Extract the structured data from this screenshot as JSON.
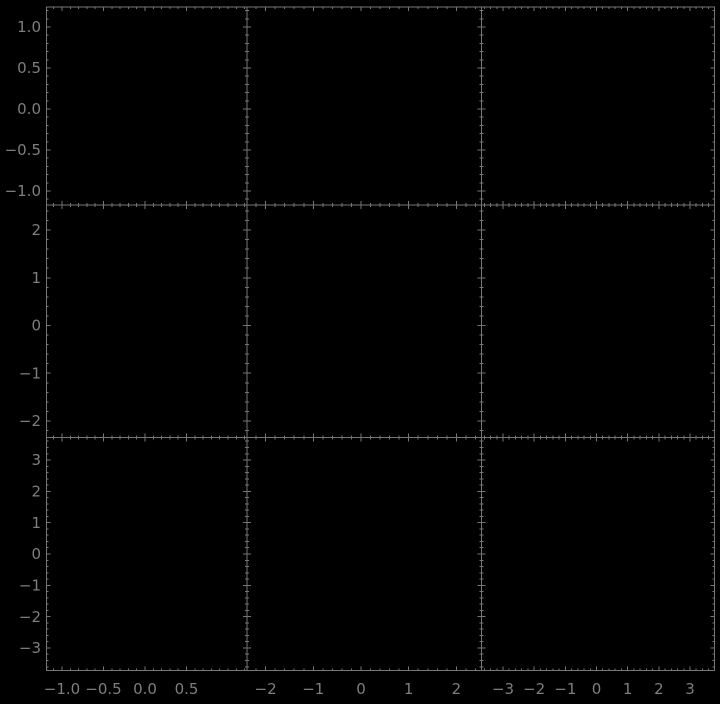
{
  "figure": {
    "background": "#000000",
    "axis_color": "#767676",
    "tick_label_color": "#7e7e7e",
    "grid_rows": 3,
    "grid_cols": 3,
    "title": ""
  },
  "chart_data": [
    {
      "type": "scatter",
      "row": 0,
      "col": 0,
      "series": [],
      "x_major_ticks": [
        -1.0,
        -0.5,
        0.0,
        0.5
      ],
      "x_tick_labels": [
        "−1.0",
        "−0.5",
        "0.0",
        "0.5"
      ],
      "y_major_ticks": [
        1.0,
        0.5,
        0.0,
        -0.5,
        -1.0
      ],
      "y_tick_labels": [
        "1.0",
        "0.5",
        "0.0",
        "−0.5",
        "−1.0"
      ],
      "xlim": [
        -1.187,
        1.229
      ],
      "ylim": [
        -1.171,
        1.244
      ],
      "x_minor_step": 0.1,
      "y_minor_step": 0.1,
      "show_x_tick_labels": false,
      "show_y_tick_labels": true
    },
    {
      "type": "scatter",
      "row": 0,
      "col": 1,
      "series": [],
      "x_major_ticks": [
        -2,
        -1,
        0,
        1,
        2
      ],
      "x_tick_labels": [
        "−2",
        "−1",
        "0",
        "1",
        "2"
      ],
      "y_major_ticks": [
        1.0,
        0.5,
        0.0,
        -0.5,
        -1.0
      ],
      "y_tick_labels": [
        "1.0",
        "0.5",
        "0.0",
        "−0.5",
        "−1.0"
      ],
      "xlim": [
        -2.39,
        2.526
      ],
      "ylim": [
        -1.171,
        1.244
      ],
      "x_minor_step": 0.2,
      "y_minor_step": 0.1,
      "show_x_tick_labels": false,
      "show_y_tick_labels": false
    },
    {
      "type": "scatter",
      "row": 0,
      "col": 2,
      "series": [],
      "x_major_ticks": [
        -3,
        -2,
        -1,
        0,
        1,
        2,
        3
      ],
      "x_tick_labels": [
        "−3",
        "−2",
        "−1",
        "0",
        "1",
        "2",
        "3"
      ],
      "y_major_ticks": [
        1.0,
        0.5,
        0.0,
        -0.5,
        -1.0
      ],
      "y_tick_labels": [
        "1.0",
        "0.5",
        "0.0",
        "−0.5",
        "−1.0"
      ],
      "xlim": [
        -3.69,
        3.786
      ],
      "ylim": [
        -1.171,
        1.244
      ],
      "x_minor_step": 0.2,
      "y_minor_step": 0.1,
      "show_x_tick_labels": false,
      "show_y_tick_labels": false
    },
    {
      "type": "scatter",
      "row": 1,
      "col": 0,
      "series": [],
      "x_major_ticks": [
        -1.0,
        -0.5,
        0.0,
        0.5
      ],
      "x_tick_labels": [
        "−1.0",
        "−0.5",
        "0.0",
        "0.5"
      ],
      "y_major_ticks": [
        2,
        1,
        0,
        -1,
        -2
      ],
      "y_tick_labels": [
        "2",
        "1",
        "0",
        "−1",
        "−2"
      ],
      "xlim": [
        -1.187,
        1.229
      ],
      "ylim": [
        -2.346,
        2.524
      ],
      "x_minor_step": 0.1,
      "y_minor_step": 0.2,
      "show_x_tick_labels": false,
      "show_y_tick_labels": true
    },
    {
      "type": "scatter",
      "row": 1,
      "col": 1,
      "series": [],
      "x_major_ticks": [
        -2,
        -1,
        0,
        1,
        2
      ],
      "x_tick_labels": [
        "−2",
        "−1",
        "0",
        "1",
        "2"
      ],
      "y_major_ticks": [
        2,
        1,
        0,
        -1,
        -2
      ],
      "y_tick_labels": [
        "2",
        "1",
        "0",
        "−1",
        "−2"
      ],
      "xlim": [
        -2.39,
        2.526
      ],
      "ylim": [
        -2.346,
        2.524
      ],
      "x_minor_step": 0.2,
      "y_minor_step": 0.2,
      "show_x_tick_labels": false,
      "show_y_tick_labels": false
    },
    {
      "type": "scatter",
      "row": 1,
      "col": 2,
      "series": [],
      "x_major_ticks": [
        -3,
        -2,
        -1,
        0,
        1,
        2,
        3
      ],
      "x_tick_labels": [
        "−3",
        "−2",
        "−1",
        "0",
        "1",
        "2",
        "3"
      ],
      "y_major_ticks": [
        2,
        1,
        0,
        -1,
        -2
      ],
      "y_tick_labels": [
        "2",
        "1",
        "0",
        "−1",
        "−2"
      ],
      "xlim": [
        -3.69,
        3.786
      ],
      "ylim": [
        -2.346,
        2.524
      ],
      "x_minor_step": 0.2,
      "y_minor_step": 0.2,
      "show_x_tick_labels": false,
      "show_y_tick_labels": false
    },
    {
      "type": "scatter",
      "row": 2,
      "col": 0,
      "series": [],
      "x_major_ticks": [
        -1.0,
        -0.5,
        0.0,
        0.5
      ],
      "x_tick_labels": [
        "−1.0",
        "−0.5",
        "0.0",
        "0.5"
      ],
      "y_major_ticks": [
        3,
        2,
        1,
        0,
        -1,
        -2,
        -3
      ],
      "y_tick_labels": [
        "3",
        "2",
        "1",
        "0",
        "−1",
        "−2",
        "−3"
      ],
      "xlim": [
        -1.187,
        1.229
      ],
      "ylim": [
        -3.719,
        3.719
      ],
      "x_minor_step": 0.1,
      "y_minor_step": 0.2,
      "show_x_tick_labels": true,
      "show_y_tick_labels": true
    },
    {
      "type": "scatter",
      "row": 2,
      "col": 1,
      "series": [],
      "x_major_ticks": [
        -2,
        -1,
        0,
        1,
        2
      ],
      "x_tick_labels": [
        "−2",
        "−1",
        "0",
        "1",
        "2"
      ],
      "y_major_ticks": [
        3,
        2,
        1,
        0,
        -1,
        -2,
        -3
      ],
      "y_tick_labels": [
        "3",
        "2",
        "1",
        "0",
        "−1",
        "−2",
        "−3"
      ],
      "xlim": [
        -2.39,
        2.526
      ],
      "ylim": [
        -3.719,
        3.719
      ],
      "x_minor_step": 0.2,
      "y_minor_step": 0.2,
      "show_x_tick_labels": true,
      "show_y_tick_labels": false
    },
    {
      "type": "scatter",
      "row": 2,
      "col": 2,
      "series": [],
      "x_major_ticks": [
        -3,
        -2,
        -1,
        0,
        1,
        2,
        3
      ],
      "x_tick_labels": [
        "−3",
        "−2",
        "−1",
        "0",
        "1",
        "2",
        "3"
      ],
      "y_major_ticks": [
        3,
        2,
        1,
        0,
        -1,
        -2,
        -3
      ],
      "y_tick_labels": [
        "3",
        "2",
        "1",
        "0",
        "−1",
        "−2",
        "−3"
      ],
      "xlim": [
        -3.69,
        3.786
      ],
      "ylim": [
        -3.719,
        3.719
      ],
      "x_minor_step": 0.2,
      "y_minor_step": 0.2,
      "show_x_tick_labels": true,
      "show_y_tick_labels": false
    }
  ]
}
